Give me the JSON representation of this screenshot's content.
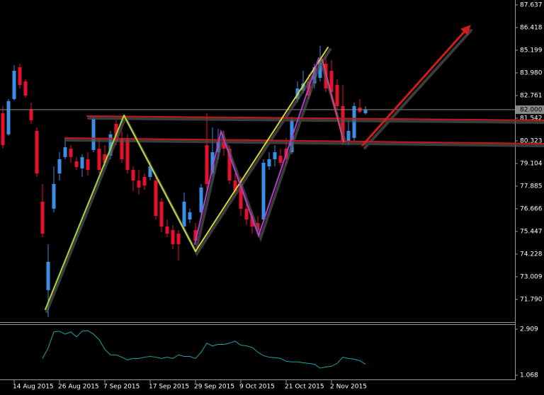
{
  "chart_data": [
    {
      "type": "candlestick",
      "x": [
        null,
        null,
        "14 Aug 2015",
        null,
        null,
        null,
        null,
        null,
        null,
        null,
        "26 Aug 2015",
        null,
        null,
        null,
        null,
        null,
        null,
        null,
        "7 Sep 2015",
        null,
        null,
        null,
        null,
        null,
        null,
        null,
        "17 Sep 2015",
        null,
        null,
        null,
        null,
        null,
        null,
        null,
        "29 Sep 2015",
        null,
        null,
        null,
        null,
        null,
        null,
        null,
        "9 Oct 2015",
        null,
        null,
        null,
        null,
        null,
        null,
        null,
        "21 Oct 2015",
        null,
        null,
        null,
        null,
        null,
        null,
        null,
        "2 Nov 2015",
        null,
        null,
        null,
        null,
        null,
        null
      ],
      "open": [
        81.81,
        80.67,
        82.57,
        84.28,
        83.52,
        82.0,
        80.86,
        77.05,
        72.29,
        76.67,
        78.57,
        79.45,
        79.9,
        79.22,
        78.84,
        79.33,
        79.83,
        79.9,
        79.6,
        79.52,
        81.24,
        80.48,
        80.48,
        78.76,
        78.19,
        78.38,
        78.38,
        78.19,
        77.05,
        75.71,
        75.52,
        75.33,
        75.71,
        76.09,
        75.52,
        76.48,
        80.09,
        78.57,
        79.71,
        80.28,
        79.9,
        78.19,
        78.0,
        76.67,
        76.28,
        75.9,
        76.09,
        78.95,
        79.33,
        79.52,
        79.9,
        79.71,
        82.57,
        83.03,
        83.52,
        83.41,
        83.71,
        84.47,
        84.09,
        83.33,
        82.19,
        80.28,
        80.48,
        82.11,
        81.81
      ],
      "high": [
        82.19,
        82.57,
        84.4,
        84.47,
        83.64,
        82.38,
        81.05,
        78.0,
        74.76,
        78.95,
        79.71,
        80.48,
        80.09,
        79.45,
        79.6,
        79.71,
        81.62,
        80.48,
        80.09,
        80.86,
        81.43,
        80.86,
        80.67,
        78.95,
        78.76,
        78.57,
        79.22,
        78.38,
        77.24,
        76.09,
        75.79,
        75.52,
        77.54,
        76.67,
        75.9,
        78.0,
        81.81,
        81.05,
        80.97,
        80.86,
        80.09,
        78.57,
        78.38,
        77.05,
        76.55,
        76.28,
        79.33,
        79.71,
        80.09,
        79.9,
        80.48,
        81.62,
        83.52,
        84.09,
        83.9,
        84.47,
        85.43,
        84.86,
        84.67,
        83.64,
        83.33,
        81.43,
        82.38,
        82.57,
        82.19
      ],
      "low": [
        79.9,
        80.59,
        82.49,
        83.14,
        82.65,
        81.24,
        78.38,
        75.14,
        70.84,
        76.48,
        78.19,
        79.33,
        79.14,
        78.76,
        78.38,
        78.46,
        79.71,
        78.57,
        78.95,
        79.33,
        80.09,
        79.14,
        78.57,
        77.62,
        77.43,
        77.69,
        78.19,
        76.09,
        75.41,
        75.14,
        74.49,
        73.89,
        75.52,
        75.9,
        74.76,
        76.28,
        77.43,
        78.38,
        79.33,
        79.52,
        78.0,
        77.43,
        76.28,
        75.79,
        75.33,
        75.26,
        75.9,
        78.76,
        78.95,
        78.95,
        79.07,
        79.6,
        82.38,
        82.88,
        82.57,
        83.14,
        83.52,
        82.95,
        82.76,
        82.0,
        80.09,
        80.09,
        80.28,
        81.81,
        81.73
      ],
      "close": [
        80.09,
        82.46,
        84.09,
        83.33,
        82.76,
        81.43,
        78.57,
        75.33,
        73.81,
        78.0,
        79.33,
        79.98,
        79.45,
        78.91,
        79.45,
        78.76,
        81.5,
        78.76,
        79.14,
        80.67,
        80.28,
        79.33,
        78.76,
        78.19,
        77.81,
        77.92,
        78.95,
        76.28,
        75.71,
        75.33,
        74.76,
        74.76,
        77.05,
        76.48,
        74.95,
        77.81,
        78.0,
        79.71,
        80.28,
        79.9,
        78.19,
        77.62,
        76.67,
        76.09,
        75.71,
        75.52,
        79.14,
        79.33,
        79.71,
        79.14,
        79.33,
        81.43,
        83.14,
        83.41,
        82.76,
        84.28,
        84.67,
        83.14,
        82.95,
        82.19,
        80.28,
        80.86,
        82.19,
        81.88,
        82.0
      ],
      "up_color": "#3a8ee6",
      "down_color": "#e8112d",
      "ylim": [
        70.57,
        87.9
      ],
      "yticks": [
        87.637,
        86.418,
        85.199,
        {
          "value": 83.98,
          "label": "83.980"
        },
        82.761,
        81.542,
        80.323,
        79.104,
        77.885,
        76.666,
        75.447,
        74.228,
        73.009,
        {
          "value": 71.79,
          "label": "71.790"
        }
      ],
      "last_price": {
        "value": 82,
        "label": "82.000"
      },
      "grid": false
    },
    {
      "type": "line",
      "values": [
        null,
        null,
        null,
        null,
        null,
        null,
        null,
        1.74,
        2.16,
        2.8,
        2.83,
        2.71,
        2.8,
        2.6,
        2.83,
        2.85,
        2.71,
        2.49,
        2.1,
        1.88,
        1.88,
        1.79,
        1.68,
        1.74,
        1.74,
        1.79,
        1.82,
        1.79,
        1.74,
        1.79,
        1.74,
        1.88,
        1.82,
        1.82,
        1.74,
        1.99,
        2.35,
        2.24,
        2.3,
        2.3,
        2.35,
        2.43,
        2.27,
        2.24,
        2.18,
        1.99,
        1.85,
        1.79,
        1.77,
        1.74,
        1.63,
        1.6,
        1.6,
        1.57,
        1.54,
        1.51,
        1.35,
        1.4,
        1.43,
        1.54,
        1.79,
        1.74,
        1.71,
        1.65,
        1.51
      ],
      "color": "#1fa3a3",
      "ylim": [
        0.9,
        3.08
      ],
      "yticks": [
        2.909,
        1.068
      ],
      "grid": false
    }
  ]
}
